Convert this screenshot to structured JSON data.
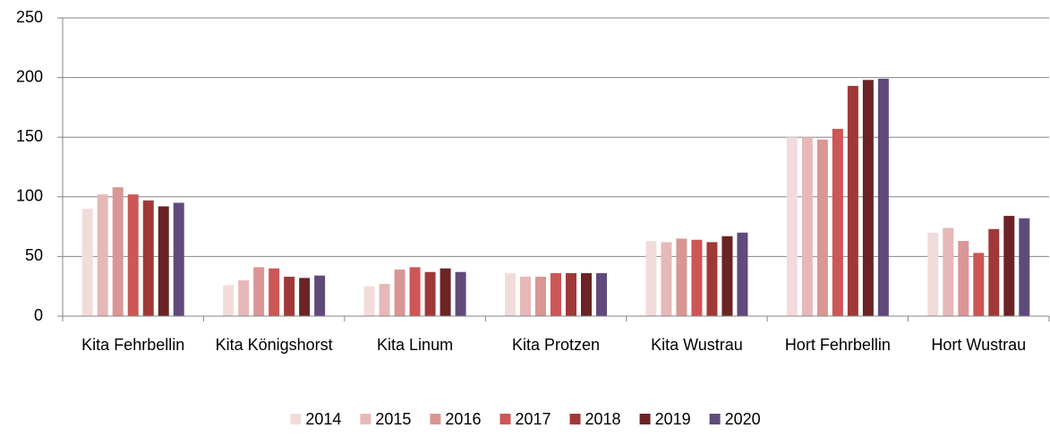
{
  "chart_data": {
    "type": "bar",
    "categories": [
      "Kita Fehrbellin",
      "Kita Königshorst",
      "Kita Linum",
      "Kita Protzen",
      "Kita Wustrau",
      "Hort Fehrbellin",
      "Hort Wustrau"
    ],
    "series": [
      {
        "name": "2014",
        "color": "#f2dcdb",
        "values": [
          90,
          26,
          25,
          36,
          63,
          150,
          70
        ]
      },
      {
        "name": "2015",
        "color": "#e6b9b8",
        "values": [
          102,
          30,
          27,
          33,
          62,
          150,
          74
        ]
      },
      {
        "name": "2016",
        "color": "#d99694",
        "values": [
          108,
          41,
          39,
          33,
          65,
          148,
          63
        ]
      },
      {
        "name": "2017",
        "color": "#cd5656",
        "values": [
          102,
          40,
          41,
          36,
          64,
          157,
          53
        ]
      },
      {
        "name": "2018",
        "color": "#a13838",
        "values": [
          97,
          33,
          37,
          36,
          62,
          193,
          73
        ]
      },
      {
        "name": "2019",
        "color": "#6b2325",
        "values": [
          92,
          32,
          40,
          36,
          67,
          198,
          84
        ]
      },
      {
        "name": "2020",
        "color": "#604a7b",
        "values": [
          95,
          34,
          37,
          36,
          70,
          199,
          82
        ]
      }
    ],
    "ylim": [
      0,
      250
    ],
    "yticks": [
      0,
      50,
      100,
      150,
      200,
      250
    ],
    "grid": true,
    "legend": "bottom"
  }
}
